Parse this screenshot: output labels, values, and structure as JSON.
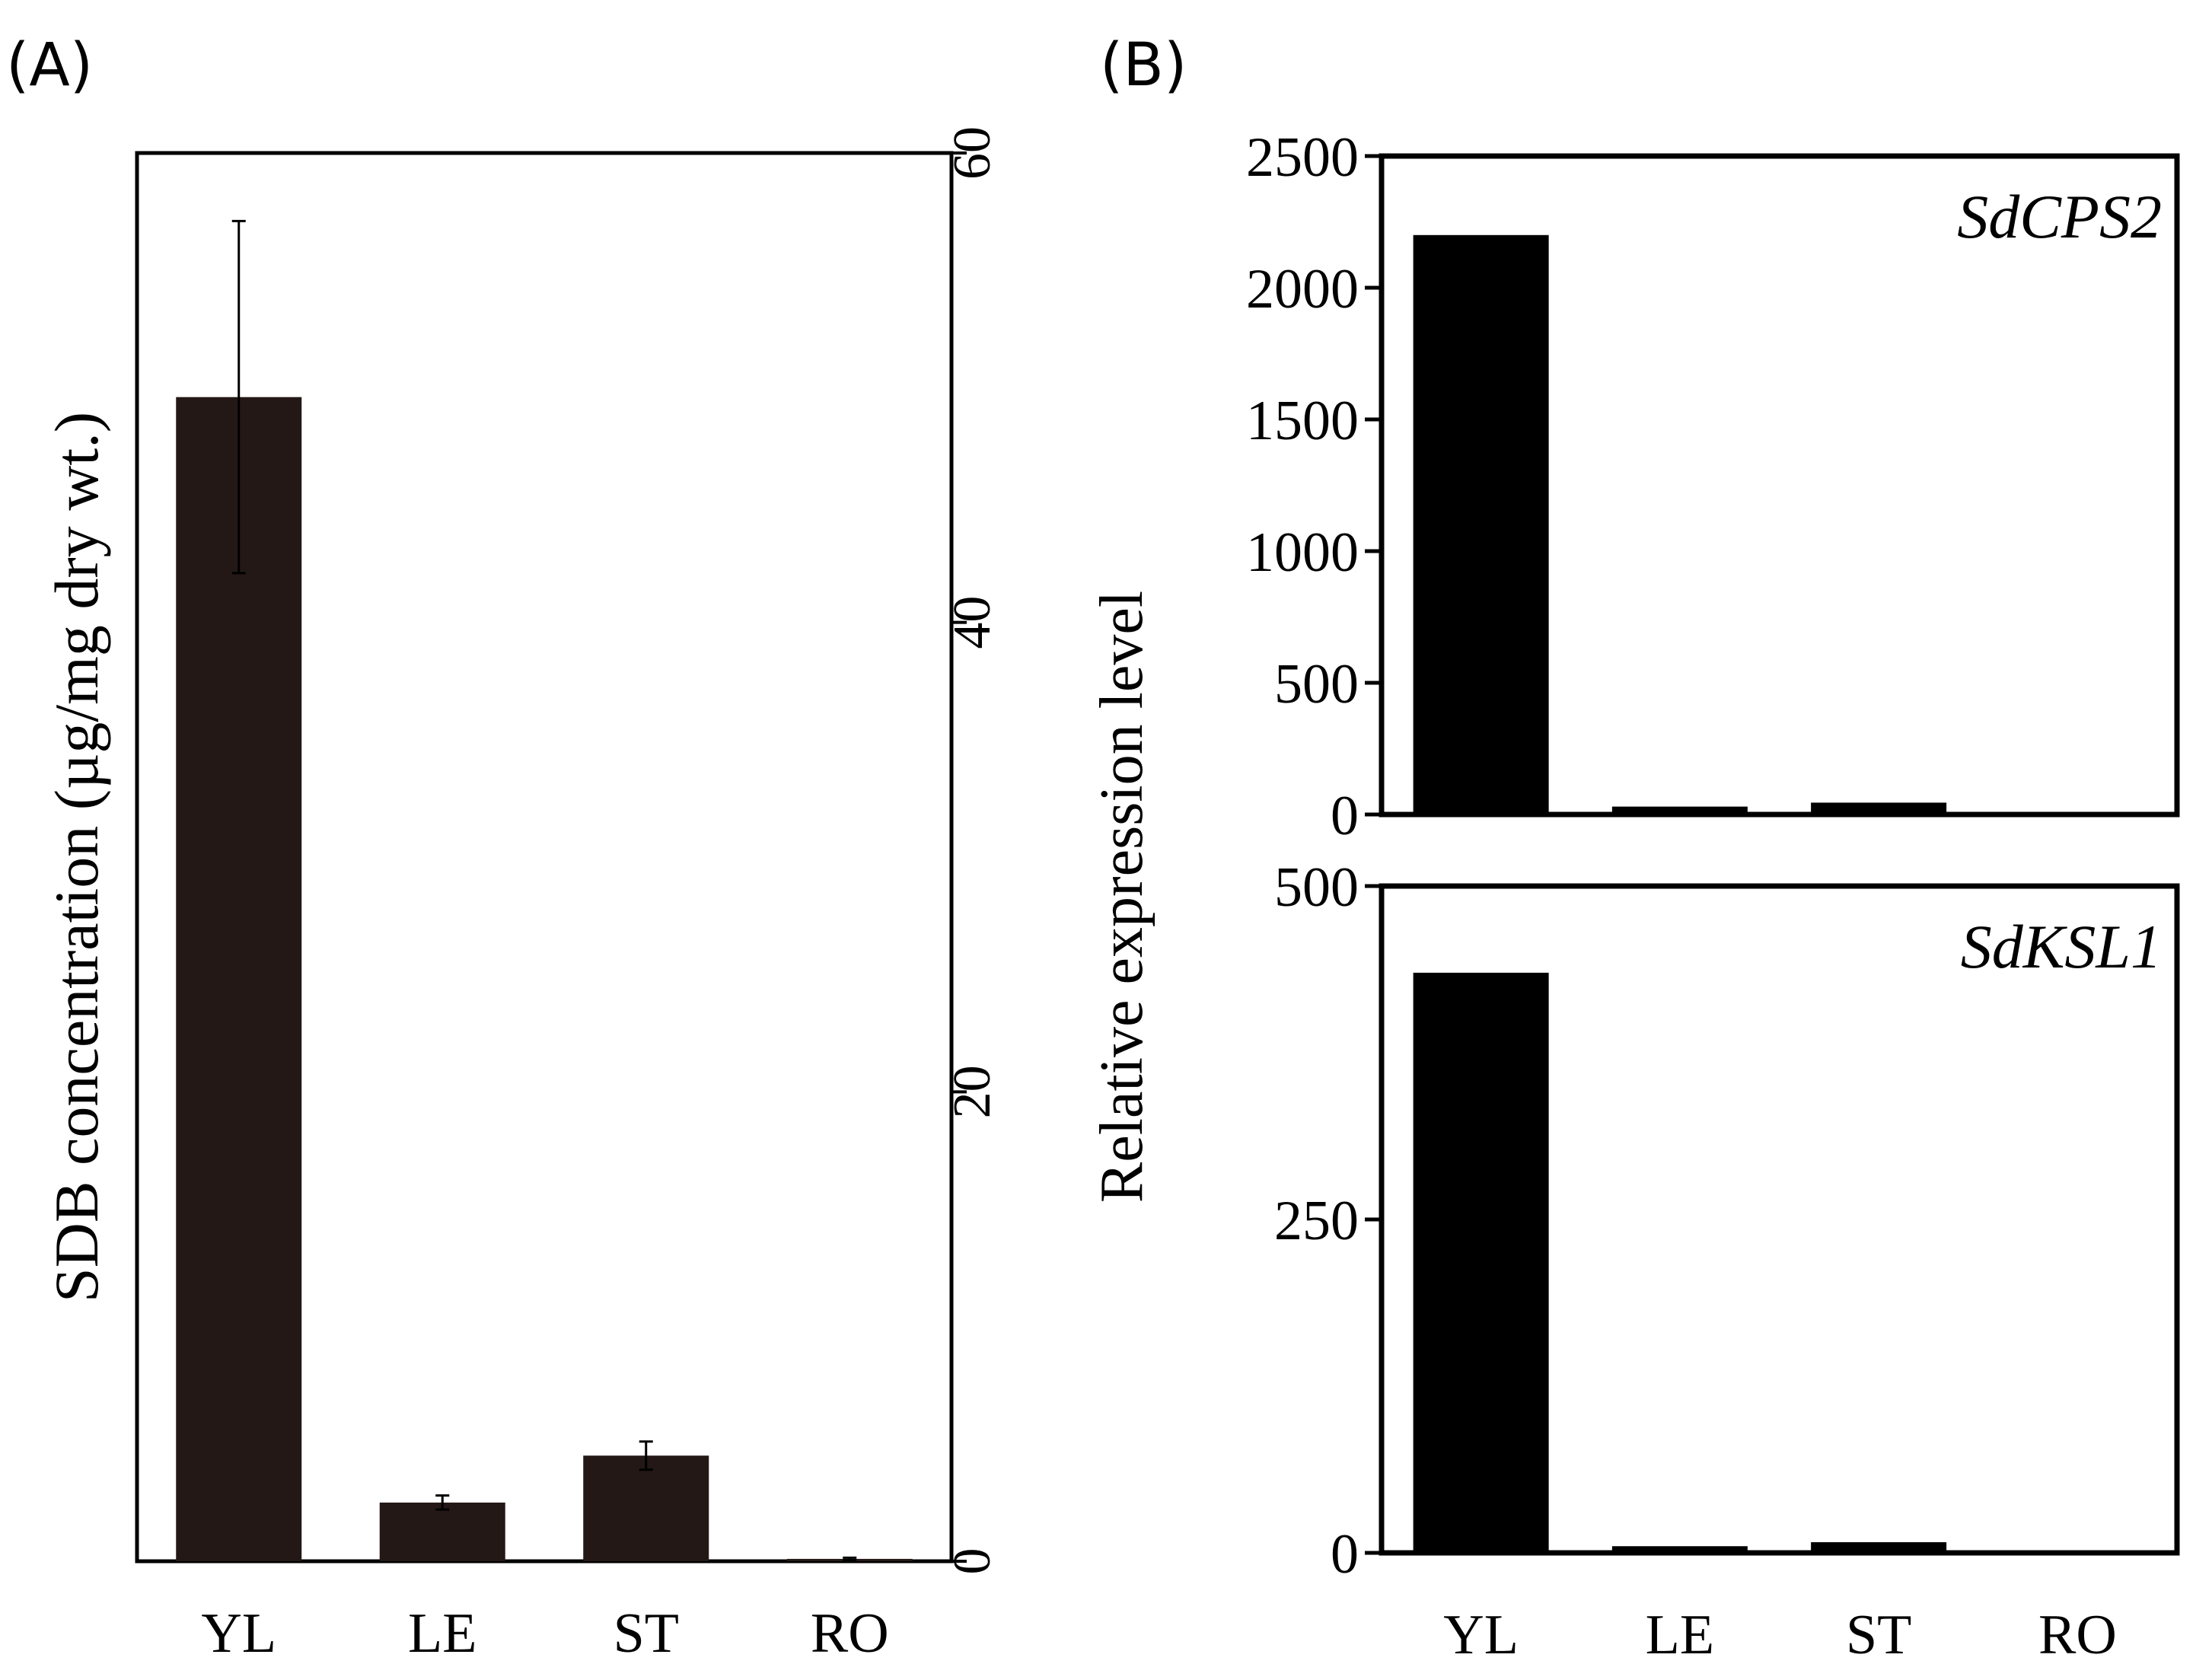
{
  "panels": {
    "a": {
      "label": "(A)"
    },
    "b": {
      "label": "(B)",
      "shared_ylabel": "Relative expression level"
    }
  },
  "colors": {
    "bar_a": "#231815",
    "bar_b": "#000000",
    "axis": "#000000"
  },
  "chart_data": [
    {
      "id": "A",
      "type": "bar",
      "title": "",
      "categories": [
        "YL",
        "LE",
        "ST",
        "RO"
      ],
      "values": [
        49.6,
        2.5,
        4.5,
        0.1
      ],
      "errors": [
        7.5,
        0.3,
        0.6,
        0.05
      ],
      "ylabel": "SDB concentration (µg/mg dry wt.)",
      "xlabel": "",
      "ylim": [
        0,
        60
      ],
      "yticks": [
        0,
        20,
        40,
        60
      ],
      "ytick_labels": [
        "0",
        "20",
        "40",
        "60"
      ],
      "yaxis_side": "right",
      "ytick_rotation": "vertical"
    },
    {
      "id": "B-top",
      "type": "bar",
      "title": "SdCPS2",
      "categories": [
        "YL",
        "LE",
        "ST",
        "RO"
      ],
      "values": [
        2200,
        30,
        45,
        0
      ],
      "ylim": [
        0,
        2500
      ],
      "yticks": [
        0,
        500,
        1000,
        1500,
        2000,
        2500
      ],
      "ytick_labels": [
        "0",
        "500",
        "1000",
        "1500",
        "2000",
        "2500"
      ]
    },
    {
      "id": "B-bottom",
      "type": "bar",
      "title": "SdKSL1",
      "categories": [
        "YL",
        "LE",
        "ST",
        "RO"
      ],
      "values": [
        435,
        5,
        8,
        0
      ],
      "ylim": [
        0,
        500
      ],
      "yticks": [
        0,
        250,
        500
      ],
      "ytick_labels": [
        "0",
        "250",
        "500"
      ],
      "xlabel": ""
    }
  ]
}
